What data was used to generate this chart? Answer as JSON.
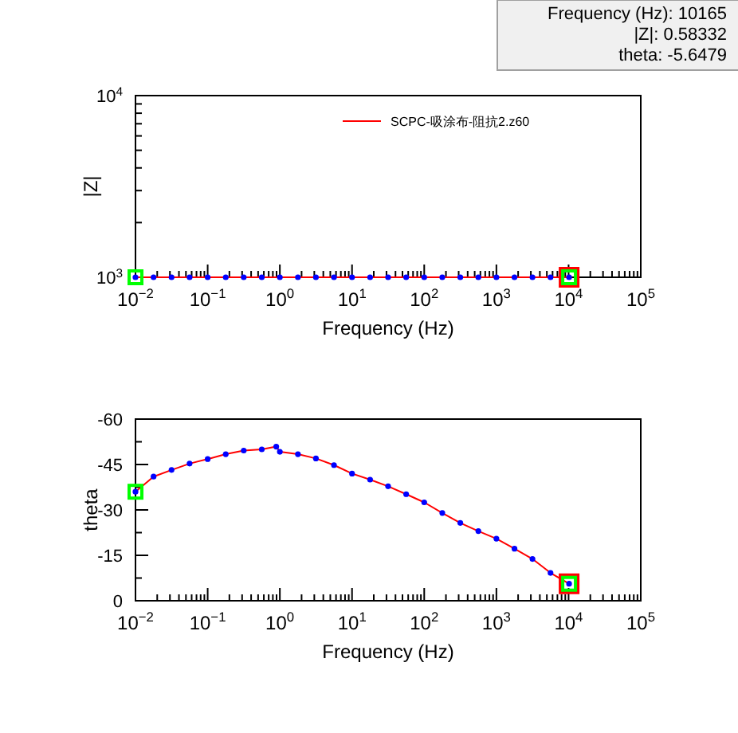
{
  "chart_data": [
    {
      "type": "line",
      "xlabel": "Frequency (Hz)",
      "ylabel": "|Z|",
      "log": "xy",
      "legend": "top right",
      "grid": false,
      "xlim": [
        0.01,
        100000
      ],
      "ylim": [
        1000,
        10000
      ],
      "xticks": [
        {
          "value": 0.01,
          "label": "10$^{−2}$"
        },
        {
          "value": 0.1,
          "label": "10$^{−1}$"
        },
        {
          "value": 1,
          "label": "10$^{0}$"
        },
        {
          "value": 10,
          "label": "10$^{1}$"
        },
        {
          "value": 100,
          "label": "10$^{2}$"
        },
        {
          "value": 1000,
          "label": "10$^{3}$"
        },
        {
          "value": 10000,
          "label": "10$^{4}$"
        },
        {
          "value": 100000,
          "label": "10$^{5}$"
        }
      ],
      "yticks": [
        {
          "value": 1000,
          "label": "10$^{3}$"
        },
        {
          "value": 10000,
          "label": "10$^{4}$"
        }
      ],
      "annotations": [
        "Frequency (Hz): 10165",
        "|Z|: 0.58332",
        "theta: -5.6479"
      ],
      "series": [
        {
          "name": "SCPC-吸涂布-阻抗2.z60",
          "type": "line",
          "color": "#ff0000",
          "x": [
            0.01,
            0.0316,
            0.1,
            0.316,
            1,
            3.16,
            10,
            31.6,
            100,
            316,
            1000,
            3160,
            10165
          ],
          "values": [
            1000,
            1000,
            1000,
            1000,
            1000,
            1000,
            1000,
            1000,
            1000,
            1000,
            1000,
            1000,
            1000
          ]
        },
        {
          "type": "scatter",
          "marker": "circle",
          "color": "#0000ff",
          "x": [
            0.01,
            0.0178,
            0.0316,
            0.0562,
            0.1,
            0.178,
            0.316,
            0.562,
            1,
            1.78,
            3.16,
            5.62,
            10,
            17.8,
            31.6,
            56.2,
            100,
            178,
            316,
            562,
            1000,
            1780,
            3160,
            5620,
            10165
          ],
          "values": [
            1000,
            1000,
            1000,
            1000,
            1000,
            1000,
            1000,
            1000,
            1000,
            1000,
            1000,
            1000,
            1000,
            1000,
            1000,
            1000,
            1000,
            1000,
            1000,
            1000,
            1000,
            1000,
            1000,
            1000,
            1000
          ]
        },
        {
          "type": "scatter",
          "marker": "square",
          "color": "#ff0000",
          "x": [
            10165
          ],
          "values": [
            1000
          ]
        },
        {
          "type": "scatter",
          "marker": "square",
          "color": "#00ff00",
          "x": [
            0.01,
            10165
          ],
          "values": [
            1000,
            1000
          ]
        }
      ]
    },
    {
      "type": "line",
      "xlabel": "Frequency (Hz)",
      "ylabel": "theta",
      "log": "x",
      "grid": false,
      "xlim": [
        0.01,
        100000
      ],
      "ylim": [
        0,
        -60
      ],
      "xticks": [
        {
          "value": 0.01,
          "label": "10$^{−2}$"
        },
        {
          "value": 0.1,
          "label": "10$^{−1}$"
        },
        {
          "value": 1,
          "label": "10$^{0}$"
        },
        {
          "value": 10,
          "label": "10$^{1}$"
        },
        {
          "value": 100,
          "label": "10$^{2}$"
        },
        {
          "value": 1000,
          "label": "10$^{3}$"
        },
        {
          "value": 10000,
          "label": "10$^{4}$"
        },
        {
          "value": 100000,
          "label": "10$^{5}$"
        }
      ],
      "yticks": [
        0,
        -15,
        -30,
        -45,
        -60
      ],
      "series": [
        {
          "type": "line",
          "color": "#ff0000",
          "x": [
            0.01,
            0.0178,
            0.0316,
            0.0562,
            0.1,
            0.178,
            0.316,
            0.562,
            0.891,
            1,
            1.78,
            3.16,
            5.62,
            10,
            17.8,
            31.6,
            56.2,
            100,
            178,
            316,
            562,
            1000,
            1780,
            3160,
            5620,
            10165
          ],
          "values": [
            -36,
            -41,
            -43.2,
            -45.3,
            -46.8,
            -48.4,
            -49.6,
            -50,
            -50.9,
            -49.2,
            -48.4,
            -47,
            -44.8,
            -42,
            -40,
            -37.8,
            -35.2,
            -32.5,
            -29,
            -25.7,
            -23,
            -20.5,
            -17.2,
            -13.8,
            -9.2,
            -5.6
          ]
        },
        {
          "type": "scatter",
          "marker": "circle",
          "color": "#0000ff",
          "x": [
            0.01,
            0.0178,
            0.0316,
            0.0562,
            0.1,
            0.178,
            0.316,
            0.562,
            0.891,
            1,
            1.78,
            3.16,
            5.62,
            10,
            17.8,
            31.6,
            56.2,
            100,
            178,
            316,
            562,
            1000,
            1780,
            3160,
            5620,
            10165
          ],
          "values": [
            -36,
            -41,
            -43.2,
            -45.3,
            -46.8,
            -48.4,
            -49.6,
            -50,
            -50.9,
            -49.2,
            -48.4,
            -47,
            -44.8,
            -42,
            -40,
            -37.8,
            -35.2,
            -32.5,
            -29,
            -25.7,
            -23,
            -20.5,
            -17.2,
            -13.8,
            -9.2,
            -5.6
          ]
        },
        {
          "type": "scatter",
          "marker": "square",
          "color": "#ff0000",
          "x": [
            10165
          ],
          "values": [
            -5.6
          ]
        },
        {
          "type": "scatter",
          "marker": "square",
          "color": "#00ff00",
          "x": [
            0.01,
            10165
          ],
          "values": [
            -36,
            -5.6
          ]
        }
      ]
    }
  ]
}
